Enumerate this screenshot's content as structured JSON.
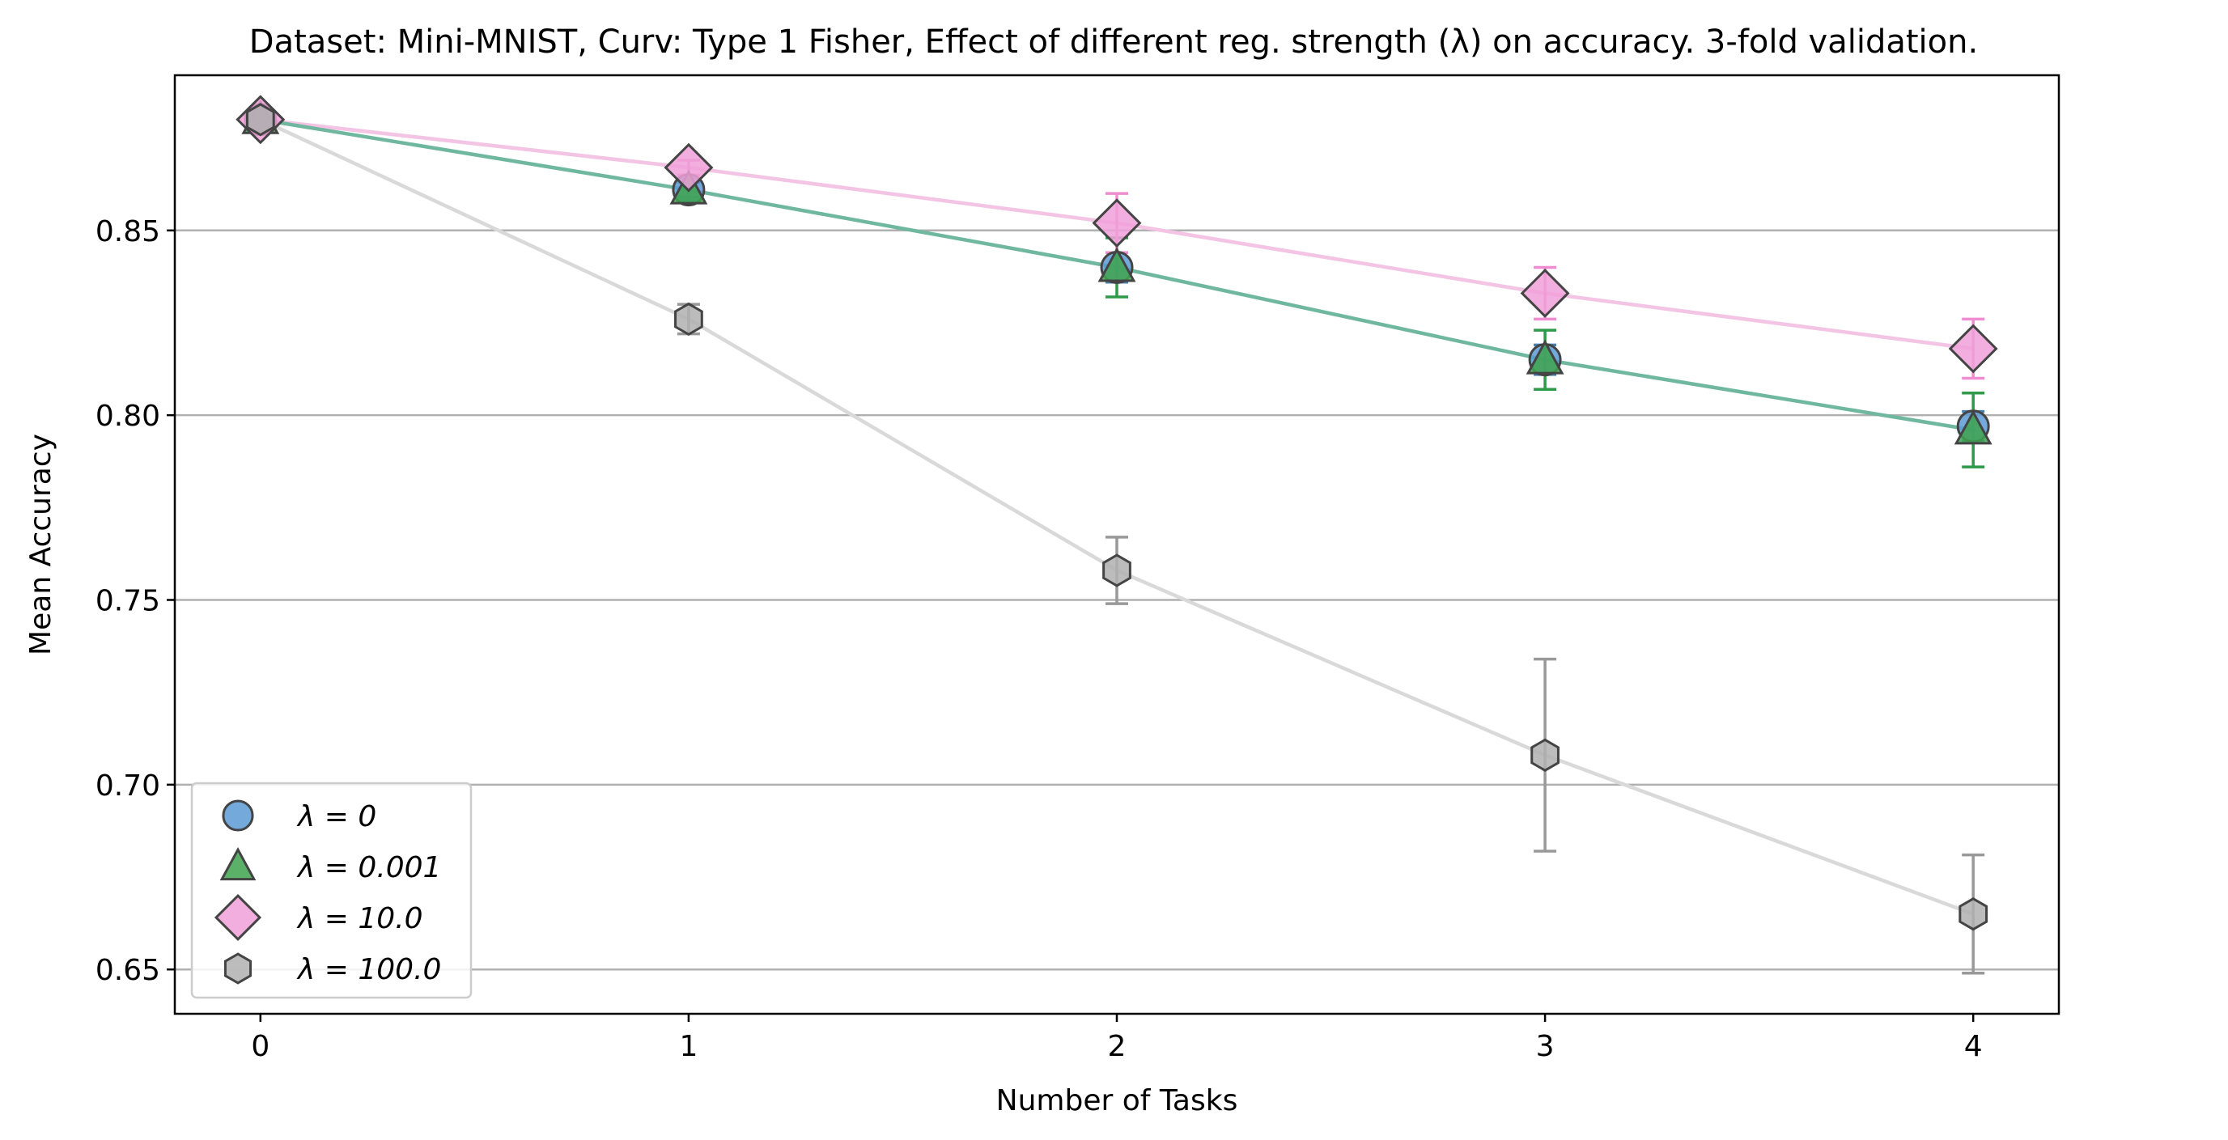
{
  "chart_data": {
    "type": "scatter",
    "title": "Dataset: Mini-MNIST, Curv: Type 1 Fisher, Effect of different reg. strength (λ) on accuracy. 3-fold validation.",
    "xlabel": "Number of Tasks",
    "ylabel": "Mean Accuracy",
    "x": [
      0,
      1,
      2,
      3,
      4
    ],
    "x_tick_labels": [
      "0",
      "1",
      "2",
      "3",
      "4"
    ],
    "xlim": [
      -0.2,
      4.2
    ],
    "ylim": [
      0.638,
      0.892
    ],
    "y_ticks": [
      0.65,
      0.7,
      0.75,
      0.8,
      0.85
    ],
    "y_tick_labels": [
      "0.65",
      "0.70",
      "0.75",
      "0.80",
      "0.85"
    ],
    "grid": "horizontal",
    "legend_position": "lower-left",
    "series": [
      {
        "name": "λ = 0",
        "marker": "circle",
        "color": "#5b9bd5",
        "line_color": "#6fb89f",
        "error_color": "#4a80b0",
        "values": [
          0.88,
          0.861,
          0.84,
          0.815,
          0.797
        ],
        "errors": [
          0.0,
          0.002,
          0.004,
          0.004,
          0.004
        ]
      },
      {
        "name": "λ = 0.001",
        "marker": "triangle",
        "color": "#3fa34d",
        "line_color": "#6fb89f",
        "error_color": "#2e9a4a",
        "values": [
          0.88,
          0.861,
          0.84,
          0.815,
          0.796
        ],
        "errors": [
          0.0,
          0.003,
          0.008,
          0.008,
          0.01
        ]
      },
      {
        "name": "λ = 10.0",
        "marker": "diamond",
        "color": "#f0a0d8",
        "line_color": "#f3c4e4",
        "error_color": "#f08cd0",
        "values": [
          0.88,
          0.867,
          0.852,
          0.833,
          0.818
        ],
        "errors": [
          0.0,
          0.002,
          0.008,
          0.007,
          0.008
        ]
      },
      {
        "name": "λ = 100.0",
        "marker": "hexagon",
        "color": "#b0b0b0",
        "line_color": "#d9d9d9",
        "error_color": "#999999",
        "values": [
          0.88,
          0.826,
          0.758,
          0.708,
          0.665
        ],
        "errors": [
          0.0,
          0.004,
          0.009,
          0.026,
          0.016
        ]
      }
    ]
  }
}
